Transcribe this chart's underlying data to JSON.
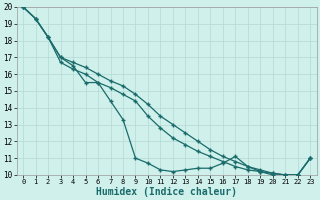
{
  "xlabel": "Humidex (Indice chaleur)",
  "background_color": "#cff0eb",
  "grid_color": "#b8ddd8",
  "line_color": "#1a6b6b",
  "xlim": [
    -0.5,
    23.5
  ],
  "ylim": [
    10,
    20
  ],
  "xticks": [
    0,
    1,
    2,
    3,
    4,
    5,
    6,
    7,
    8,
    9,
    10,
    11,
    12,
    13,
    14,
    15,
    16,
    17,
    18,
    19,
    20,
    21,
    22,
    23
  ],
  "yticks": [
    10,
    11,
    12,
    13,
    14,
    15,
    16,
    17,
    18,
    19,
    20
  ],
  "line1_x": [
    0,
    1,
    2,
    3,
    4,
    5,
    6,
    7,
    8,
    9,
    10,
    11,
    12,
    13,
    14,
    15,
    16,
    17,
    18,
    19,
    20,
    21,
    22,
    23
  ],
  "line1_y": [
    20,
    19.3,
    18.2,
    17.0,
    16.5,
    15.5,
    15.5,
    14.4,
    13.3,
    11.0,
    10.7,
    10.3,
    10.2,
    10.3,
    10.4,
    10.4,
    10.7,
    11.1,
    10.5,
    10.2,
    10.0,
    10.0,
    10.0,
    11.0
  ],
  "line2_x": [
    0,
    1,
    2,
    3,
    4,
    5,
    6,
    7,
    8,
    9,
    10,
    11,
    12,
    13,
    14,
    15,
    16,
    17,
    18,
    19,
    20,
    21,
    22,
    23
  ],
  "line2_y": [
    20,
    19.3,
    18.2,
    16.7,
    16.3,
    16.0,
    15.5,
    15.2,
    14.8,
    14.4,
    13.5,
    12.8,
    12.2,
    11.8,
    11.4,
    11.1,
    10.8,
    10.5,
    10.3,
    10.2,
    10.1,
    10.0,
    10.0,
    11.0
  ],
  "line3_x": [
    0,
    1,
    2,
    3,
    4,
    5,
    6,
    7,
    8,
    9,
    10,
    11,
    12,
    13,
    14,
    15,
    16,
    17,
    18,
    19,
    20,
    21,
    22,
    23
  ],
  "line3_y": [
    20,
    19.3,
    18.2,
    17.0,
    16.7,
    16.4,
    16.0,
    15.6,
    15.3,
    14.8,
    14.2,
    13.5,
    13.0,
    12.5,
    12.0,
    11.5,
    11.1,
    10.8,
    10.5,
    10.3,
    10.1,
    10.0,
    10.0,
    11.0
  ]
}
